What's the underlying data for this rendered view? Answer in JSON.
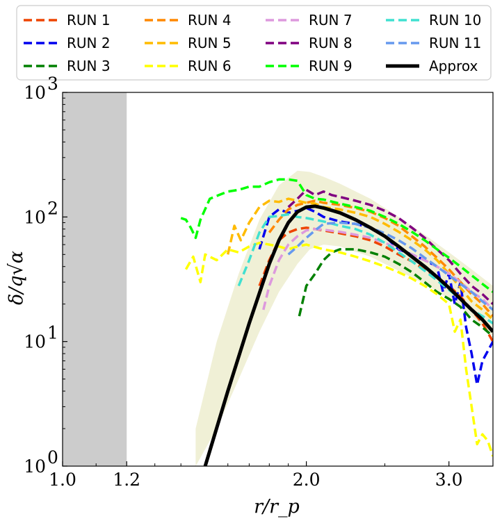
{
  "chart_data": {
    "type": "line",
    "title": "",
    "xlabel": "r/r_p",
    "ylabel": "δ/q√α",
    "xscale": "log",
    "yscale": "log",
    "xlim": [
      1.0,
      3.4
    ],
    "ylim": [
      1,
      1000
    ],
    "x_ticks": [
      {
        "value": 1.0,
        "label": "1.0"
      },
      {
        "value": 1.2,
        "label": "1.2"
      },
      {
        "value": 2.0,
        "label": "2.0"
      },
      {
        "value": 3.0,
        "label": "3.0"
      }
    ],
    "y_ticks": [
      {
        "value": 1,
        "label": "10^0"
      },
      {
        "value": 10,
        "label": "10^1"
      },
      {
        "value": 100,
        "label": "10^2"
      },
      {
        "value": 1000,
        "label": "10^3"
      }
    ],
    "shaded_region": {
      "x_start": 1.0,
      "x_end": 1.2,
      "color": "#cccccc"
    },
    "uncertainty_band": {
      "color": "#eeeed2",
      "x": [
        1.46,
        1.55,
        1.65,
        1.75,
        1.85,
        1.95,
        2.02,
        2.1,
        2.2,
        2.4,
        2.6,
        2.8,
        3.0,
        3.2,
        3.4
      ],
      "lower": [
        1.0,
        2.0,
        5.0,
        12.0,
        25.0,
        42.0,
        55.0,
        60.0,
        58.0,
        48.0,
        37.0,
        29.0,
        22.0,
        16.0,
        11.0
      ],
      "upper": [
        2.0,
        10.0,
        35.0,
        95.0,
        180.0,
        235.0,
        230.0,
        210.0,
        185.0,
        140.0,
        100.0,
        72.0,
        52.0,
        38.0,
        28.0
      ]
    },
    "series": [
      {
        "name": "RUN 1",
        "color": "#ee4400",
        "style": "dashed",
        "x": [
          1.75,
          1.8,
          1.85,
          1.9,
          1.95,
          2.0,
          2.05,
          2.1,
          2.2,
          2.3,
          2.4,
          2.5,
          2.6,
          2.7,
          2.8,
          2.9,
          3.0,
          3.1,
          3.2,
          3.3,
          3.4
        ],
        "y": [
          28,
          45,
          65,
          75,
          80,
          82,
          80,
          78,
          74,
          70,
          65,
          58,
          50,
          44,
          38,
          33,
          28,
          23,
          18,
          14,
          10
        ]
      },
      {
        "name": "RUN 2",
        "color": "#0000ee",
        "style": "dashed",
        "x": [
          1.75,
          1.8,
          1.85,
          1.9,
          1.95,
          2.0,
          2.05,
          2.1,
          2.2,
          2.3,
          2.4,
          2.5,
          2.6,
          2.7,
          2.8,
          2.9,
          2.95,
          3.0,
          3.05,
          3.1,
          3.15,
          3.2,
          3.25,
          3.3,
          3.4
        ],
        "y": [
          55,
          100,
          115,
          108,
          112,
          118,
          110,
          100,
          92,
          88,
          82,
          70,
          55,
          50,
          45,
          40,
          25,
          35,
          20,
          30,
          13,
          8,
          4.5,
          7,
          10
        ]
      },
      {
        "name": "RUN 3",
        "color": "#008000",
        "style": "dashed",
        "x": [
          1.96,
          2.0,
          2.05,
          2.1,
          2.15,
          2.2,
          2.3,
          2.4,
          2.5,
          2.6,
          2.7,
          2.8,
          2.9,
          3.0,
          3.1,
          3.2,
          3.3,
          3.4
        ],
        "y": [
          16,
          28,
          35,
          45,
          52,
          55,
          55,
          52,
          48,
          42,
          36,
          30,
          25,
          22,
          19,
          15,
          13,
          11
        ]
      },
      {
        "name": "RUN 4",
        "color": "#ff8800",
        "style": "dashed",
        "x": [
          1.8,
          1.85,
          1.9,
          1.95,
          2.0,
          2.05,
          2.1,
          2.2,
          2.3,
          2.4,
          2.5,
          2.6,
          2.7,
          2.8,
          2.9,
          3.0,
          3.1,
          3.2,
          3.3,
          3.4
        ],
        "y": [
          75,
          95,
          115,
          125,
          130,
          135,
          130,
          125,
          118,
          110,
          98,
          85,
          70,
          58,
          47,
          38,
          30,
          24,
          20,
          16
        ]
      },
      {
        "name": "RUN 5",
        "color": "#ffbb00",
        "style": "dashed",
        "x": [
          1.6,
          1.63,
          1.66,
          1.7,
          1.75,
          1.8,
          1.85,
          1.9,
          1.95,
          2.0,
          2.05,
          2.1,
          2.2,
          2.3,
          2.4,
          2.5,
          2.6,
          2.7,
          2.8,
          2.9,
          3.0,
          3.1,
          3.2,
          3.3,
          3.4
        ],
        "y": [
          50,
          85,
          65,
          90,
          120,
          135,
          132,
          140,
          135,
          130,
          128,
          120,
          115,
          108,
          100,
          88,
          76,
          65,
          55,
          45,
          35,
          27,
          21,
          18,
          15
        ]
      },
      {
        "name": "RUN 6",
        "color": "#ffff00",
        "style": "dashed",
        "x": [
          1.42,
          1.45,
          1.48,
          1.5,
          1.55,
          1.6,
          1.65,
          1.7,
          1.75,
          1.8,
          1.85,
          1.9,
          1.95,
          2.0,
          2.1,
          2.2,
          2.3,
          2.4,
          2.5,
          2.6,
          2.7,
          2.8,
          2.9,
          3.0,
          3.05,
          3.1,
          3.15,
          3.2,
          3.25,
          3.3,
          3.35,
          3.4
        ],
        "y": [
          38,
          48,
          30,
          50,
          45,
          55,
          52,
          58,
          62,
          60,
          58,
          55,
          58,
          60,
          55,
          52,
          48,
          44,
          40,
          36,
          32,
          28,
          24,
          20,
          12,
          15,
          6,
          3,
          1.5,
          1.8,
          1.6,
          1.2
        ]
      },
      {
        "name": "RUN 7",
        "color": "#dd99dd",
        "style": "dashed",
        "x": [
          1.77,
          1.8,
          1.85,
          1.9,
          1.95,
          2.0,
          2.05,
          2.1,
          2.2,
          2.3,
          2.4,
          2.5,
          2.6,
          2.7,
          2.8,
          2.9,
          3.0,
          3.1,
          3.2,
          3.3,
          3.4
        ],
        "y": [
          18,
          28,
          45,
          60,
          70,
          78,
          80,
          79,
          76,
          72,
          68,
          62,
          56,
          50,
          45,
          40,
          35,
          30,
          25,
          22,
          18
        ]
      },
      {
        "name": "RUN 8",
        "color": "#800080",
        "style": "dashed",
        "x": [
          1.9,
          1.95,
          2.0,
          2.05,
          2.1,
          2.15,
          2.2,
          2.3,
          2.4,
          2.5,
          2.6,
          2.7,
          2.8,
          2.9,
          3.0,
          3.1,
          3.2,
          3.3,
          3.4
        ],
        "y": [
          120,
          140,
          165,
          150,
          160,
          150,
          145,
          135,
          125,
          112,
          98,
          82,
          68,
          55,
          45,
          35,
          28,
          24,
          20
        ]
      },
      {
        "name": "RUN 9",
        "color": "#00ff00",
        "style": "dashed",
        "x": [
          1.4,
          1.42,
          1.44,
          1.46,
          1.48,
          1.52,
          1.56,
          1.6,
          1.65,
          1.7,
          1.75,
          1.8,
          1.85,
          1.9,
          1.95,
          2.0,
          2.05,
          2.1,
          2.2,
          2.3,
          2.4,
          2.5,
          2.6,
          2.7,
          2.8,
          2.9,
          3.0,
          3.1,
          3.2,
          3.3,
          3.4
        ],
        "y": [
          98,
          95,
          82,
          68,
          95,
          140,
          150,
          160,
          165,
          175,
          175,
          190,
          200,
          200,
          195,
          150,
          140,
          138,
          128,
          120,
          112,
          100,
          88,
          76,
          65,
          55,
          47,
          40,
          34,
          29,
          25
        ]
      },
      {
        "name": "RUN 10",
        "color": "#40e0d0",
        "style": "dashed",
        "x": [
          1.65,
          1.7,
          1.75,
          1.8,
          1.85,
          1.9,
          1.95,
          2.0,
          2.1,
          2.2,
          2.3,
          2.4,
          2.5,
          2.6,
          2.7,
          2.8,
          2.9,
          3.0,
          3.1,
          3.2,
          3.3,
          3.4
        ],
        "y": [
          28,
          45,
          75,
          100,
          102,
          105,
          100,
          98,
          92,
          85,
          80,
          72,
          62,
          52,
          44,
          37,
          31,
          26,
          22,
          18,
          16,
          14
        ]
      },
      {
        "name": "RUN 11",
        "color": "#6699ee",
        "style": "dashed",
        "x": [
          1.9,
          1.95,
          2.0,
          2.05,
          2.1,
          2.2,
          2.3,
          2.4,
          2.5,
          2.6,
          2.7,
          2.8,
          2.9,
          3.0,
          3.1,
          3.2,
          3.3,
          3.4
        ],
        "y": [
          50,
          58,
          68,
          78,
          88,
          90,
          88,
          82,
          74,
          65,
          56,
          47,
          40,
          34,
          29,
          25,
          21,
          18
        ]
      },
      {
        "name": "Approx",
        "color": "#000000",
        "style": "solid",
        "x": [
          1.5,
          1.6,
          1.7,
          1.8,
          1.85,
          1.9,
          1.95,
          2.0,
          2.05,
          2.1,
          2.2,
          2.3,
          2.4,
          2.5,
          2.6,
          2.7,
          2.8,
          2.9,
          3.0,
          3.1,
          3.2,
          3.3,
          3.4
        ],
        "y": [
          1.0,
          4.0,
          14.0,
          42.0,
          65.0,
          90.0,
          110.0,
          120.0,
          122.0,
          118.0,
          108.0,
          95.0,
          82.0,
          70.0,
          58.0,
          48.0,
          40.0,
          33.0,
          27.0,
          22.0,
          18.0,
          15.0,
          12.0
        ]
      }
    ],
    "legend": {
      "placement": "top",
      "columns": 4
    }
  }
}
